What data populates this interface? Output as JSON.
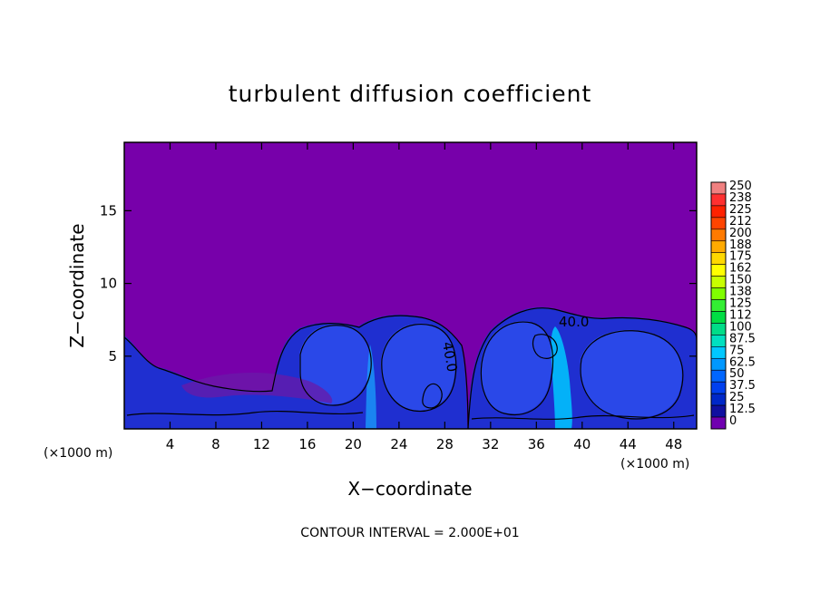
{
  "chart_data": {
    "type": "heatmap",
    "title": "turbulent diffusion coefficient",
    "xlabel": "X−coordinate",
    "ylabel": "Z−coordinate",
    "x_unit": "(×1000 m)",
    "x_unit_right": "(×1000 m)",
    "xlim": [
      0,
      50
    ],
    "ylim": [
      0,
      19.7
    ],
    "x_ticks": [
      4,
      8,
      12,
      16,
      20,
      24,
      28,
      32,
      36,
      40,
      44,
      48
    ],
    "y_ticks": [
      5,
      10,
      15
    ],
    "contour_interval_text": "CONTOUR INTERVAL = 2.000E+01",
    "contour_labels": [
      "40.0",
      "40.0"
    ],
    "colorbar": {
      "labels": [
        "250",
        "238",
        "225",
        "212",
        "200",
        "188",
        "175",
        "162",
        "150",
        "138",
        "125",
        "112",
        "100",
        "87.5",
        "75",
        "62.5",
        "50",
        "37.5",
        "25",
        "12.5",
        "0"
      ],
      "colors": [
        "#f08080",
        "#ff3030",
        "#ff2200",
        "#ff4400",
        "#ff7a00",
        "#ffaa00",
        "#ffd800",
        "#ffff00",
        "#c8ff00",
        "#80ff00",
        "#33ee33",
        "#00dd44",
        "#00dd88",
        "#00e0c0",
        "#00c8ff",
        "#0098ff",
        "#0066ff",
        "#0040ee",
        "#0028c8",
        "#1010a0",
        "#7000b0"
      ]
    },
    "background_value": 0,
    "background_color": "#7700aa"
  }
}
